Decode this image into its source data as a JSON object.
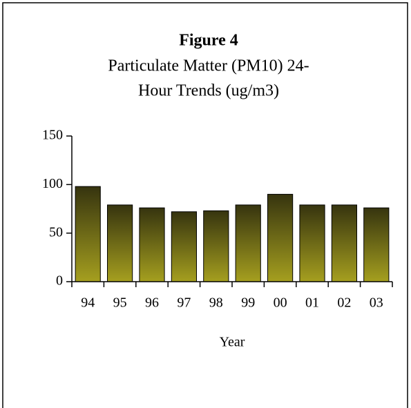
{
  "chart_data": {
    "type": "bar",
    "title": "Figure 4",
    "subtitle": [
      "Particulate Matter (PM10) 24-",
      "Hour Trends (ug/m3)"
    ],
    "x_label": "Year",
    "categories": [
      "94",
      "95",
      "96",
      "97",
      "98",
      "99",
      "00",
      "01",
      "02",
      "03"
    ],
    "values": [
      98,
      79,
      76,
      72,
      73,
      79,
      90,
      79,
      79,
      76
    ],
    "colors": [
      "#36340f",
      "#a59f1f"
    ],
    "ylim": [
      0,
      150
    ],
    "yticks": [
      0,
      50,
      100,
      150
    ],
    "grid": false
  }
}
